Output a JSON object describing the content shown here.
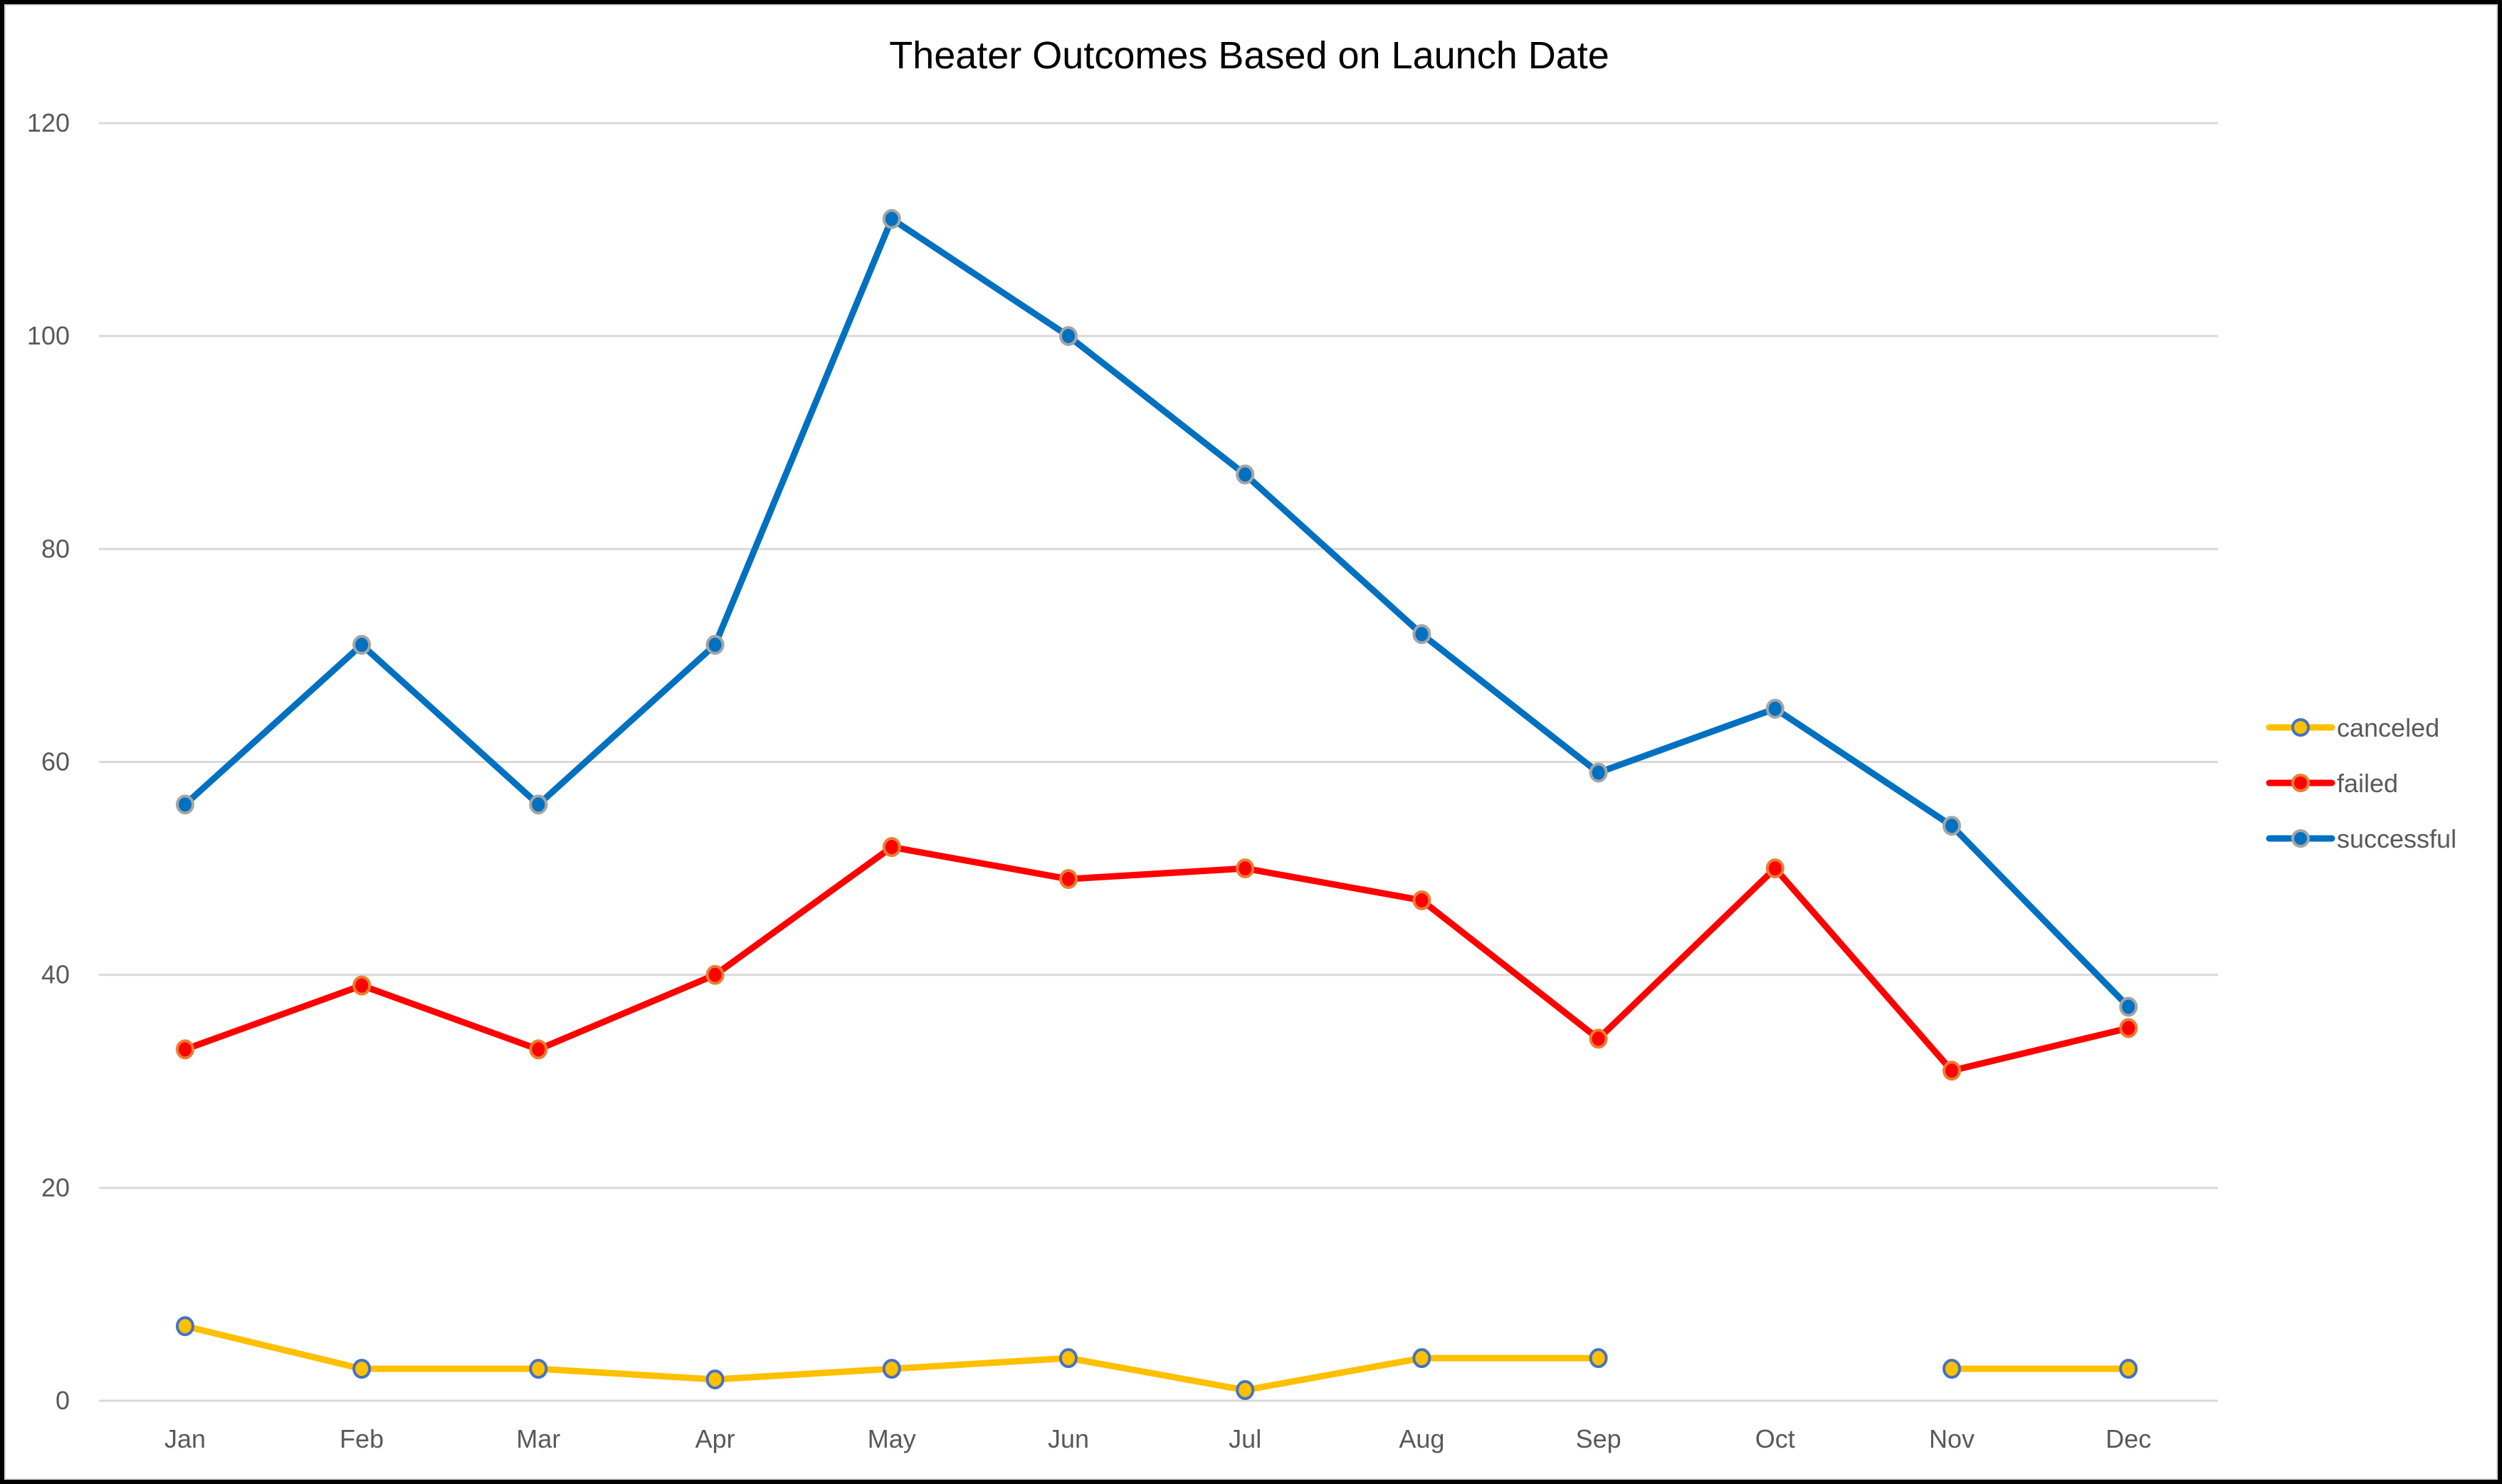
{
  "chart_data": {
    "type": "line",
    "title": "Theater Outcomes Based on Launch Date",
    "xlabel": "",
    "ylabel": "",
    "categories": [
      "Jan",
      "Feb",
      "Mar",
      "Apr",
      "May",
      "Jun",
      "Jul",
      "Aug",
      "Sep",
      "Oct",
      "Nov",
      "Dec"
    ],
    "ylim": [
      0,
      120
    ],
    "yticks": [
      0,
      20,
      40,
      60,
      80,
      100,
      120
    ],
    "grid": true,
    "legend_position": "right",
    "series": [
      {
        "name": "canceled",
        "color": "#FFC000",
        "marker_edge": "#4472C4",
        "values": [
          7,
          3,
          3,
          2,
          3,
          4,
          1,
          4,
          4,
          null,
          3,
          3
        ]
      },
      {
        "name": "failed",
        "color": "#FF0000",
        "marker_edge": "#ED7D31",
        "values": [
          33,
          39,
          33,
          40,
          52,
          49,
          50,
          47,
          34,
          50,
          31,
          35
        ]
      },
      {
        "name": "successful",
        "color": "#0070C0",
        "marker_edge": "#A5A5A5",
        "values": [
          56,
          71,
          56,
          71,
          111,
          100,
          87,
          72,
          59,
          65,
          54,
          37
        ]
      }
    ]
  }
}
